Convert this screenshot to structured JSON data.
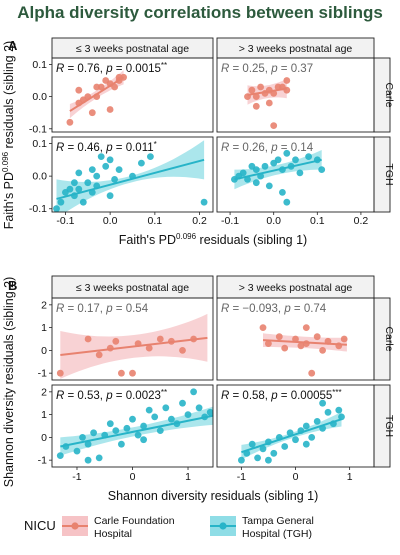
{
  "title": "Alpha diversity correlations between siblings",
  "colors": {
    "carle": "#e8826f",
    "carle_band": "#f6c3c6",
    "tgh": "#27b4c8",
    "tgh_band": "#8fdde6",
    "strip_bg": "#f2f2f2",
    "stat_sig": "#111111",
    "stat_ns": "#666666"
  },
  "legend": {
    "title": "NICU",
    "carle_line1": "Carle Foundation",
    "carle_line2": "Hospital",
    "tgh_line1": "Tampa General",
    "tgh_line2": "Hospital (TGH)"
  },
  "chart_data": [
    {
      "id": "A",
      "type": "scatter",
      "panel_letter": "A",
      "col_labels": [
        "≤ 3 weeks postnatal age",
        "> 3 weeks postnatal age"
      ],
      "row_labels": [
        "Carle",
        "TGH"
      ],
      "xlabel": {
        "pre": "Faith's PD",
        "sup": "0.096",
        "post": " residuals (sibling 1)"
      },
      "ylabel": {
        "pre": "Faith's PD",
        "sup": "0.096",
        "post": " residuals (sibling 2)"
      },
      "xlim": [
        -0.13,
        0.23
      ],
      "xticks": [
        -0.1,
        0.0,
        0.1,
        0.2
      ],
      "xtick_labels": [
        "-0.1",
        "0.0",
        "0.1",
        "0.2"
      ],
      "rows": [
        {
          "ylim": [
            -0.11,
            0.12
          ],
          "yticks": [
            -0.1,
            0.0,
            0.1
          ],
          "ytick_labels": [
            "-0.1",
            "0.0",
            "0.1"
          ]
        },
        {
          "ylim": [
            -0.11,
            0.12
          ],
          "yticks": [
            -0.1,
            0.0,
            0.1
          ],
          "ytick_labels": [
            "-0.1",
            "0.0",
            "0.1"
          ]
        }
      ],
      "panels": [
        {
          "row": 0,
          "col": 0,
          "group": "carle",
          "stat": {
            "r": "0.76",
            "p": "0.0015",
            "stars": "**"
          },
          "significant": true,
          "fit": {
            "x": [
              -0.09,
              0.03
            ],
            "y": [
              -0.045,
              0.06
            ]
          },
          "band": [
            0.012,
            0.022
          ],
          "points": [
            [
              -0.09,
              -0.08
            ],
            [
              -0.07,
              -0.02
            ],
            [
              -0.07,
              0.02
            ],
            [
              -0.06,
              -0.01
            ],
            [
              -0.05,
              0.0
            ],
            [
              -0.04,
              -0.05
            ],
            [
              -0.03,
              0.0
            ],
            [
              -0.03,
              0.03
            ],
            [
              -0.02,
              0.03
            ],
            [
              -0.01,
              0.05
            ],
            [
              0.0,
              -0.04
            ],
            [
              0.0,
              0.04
            ],
            [
              0.01,
              0.03
            ],
            [
              0.02,
              0.05
            ],
            [
              0.02,
              0.06
            ],
            [
              0.03,
              0.06
            ]
          ]
        },
        {
          "row": 0,
          "col": 1,
          "group": "carle",
          "stat": {
            "r": "0.25",
            "p": "0.37",
            "stars": ""
          },
          "significant": false,
          "fit": {
            "x": [
              -0.06,
              0.03
            ],
            "y": [
              0.005,
              0.025
            ]
          },
          "band": [
            0.02,
            0.03
          ],
          "points": [
            [
              -0.06,
              0.0
            ],
            [
              -0.05,
              0.02
            ],
            [
              -0.04,
              0.0
            ],
            [
              -0.03,
              0.03
            ],
            [
              -0.02,
              0.01
            ],
            [
              -0.01,
              -0.02
            ],
            [
              -0.01,
              0.02
            ],
            [
              0.0,
              0.01
            ],
            [
              0.0,
              -0.09
            ],
            [
              0.01,
              0.03
            ],
            [
              0.02,
              0.03
            ],
            [
              0.03,
              0.02
            ],
            [
              0.03,
              0.05
            ],
            [
              -0.04,
              -0.03
            ]
          ]
        },
        {
          "row": 1,
          "col": 0,
          "group": "tgh",
          "stat": {
            "r": "0.46",
            "p": "0.011",
            "stars": "*"
          },
          "significant": true,
          "fit": {
            "x": [
              -0.12,
              0.21
            ],
            "y": [
              -0.07,
              0.05
            ]
          },
          "band": [
            0.01,
            0.06
          ],
          "points": [
            [
              -0.12,
              -0.1
            ],
            [
              -0.11,
              -0.08
            ],
            [
              -0.1,
              -0.05
            ],
            [
              -0.09,
              -0.04
            ],
            [
              -0.08,
              -0.06
            ],
            [
              -0.08,
              -0.02
            ],
            [
              -0.07,
              -0.04
            ],
            [
              -0.07,
              0.01
            ],
            [
              -0.06,
              -0.08
            ],
            [
              -0.05,
              -0.02
            ],
            [
              -0.04,
              -0.05
            ],
            [
              -0.04,
              0.02
            ],
            [
              -0.03,
              0.0
            ],
            [
              -0.03,
              -0.03
            ],
            [
              -0.02,
              0.06
            ],
            [
              -0.01,
              0.03
            ],
            [
              0.0,
              -0.06
            ],
            [
              0.0,
              0.05
            ],
            [
              0.01,
              -0.01
            ],
            [
              0.02,
              0.02
            ],
            [
              0.05,
              0.0
            ],
            [
              0.07,
              0.04
            ],
            [
              0.09,
              0.06
            ],
            [
              0.21,
              -0.08
            ]
          ]
        },
        {
          "row": 1,
          "col": 1,
          "group": "tgh",
          "stat": {
            "r": "0.26",
            "p": "0.14",
            "stars": ""
          },
          "significant": false,
          "fit": {
            "x": [
              -0.09,
              0.11
            ],
            "y": [
              -0.01,
              0.05
            ]
          },
          "band": [
            0.015,
            0.03
          ],
          "points": [
            [
              -0.09,
              -0.01
            ],
            [
              -0.08,
              0.0
            ],
            [
              -0.07,
              0.01
            ],
            [
              -0.06,
              -0.01
            ],
            [
              -0.05,
              0.03
            ],
            [
              -0.04,
              -0.02
            ],
            [
              -0.04,
              0.02
            ],
            [
              -0.03,
              0.0
            ],
            [
              -0.02,
              0.03
            ],
            [
              -0.01,
              -0.03
            ],
            [
              0.0,
              0.04
            ],
            [
              0.01,
              0.05
            ],
            [
              0.02,
              -0.05
            ],
            [
              0.02,
              0.02
            ],
            [
              0.03,
              -0.08
            ],
            [
              0.04,
              0.03
            ],
            [
              0.05,
              0.05
            ],
            [
              0.06,
              0.01
            ],
            [
              0.08,
              0.06
            ],
            [
              0.1,
              0.05
            ],
            [
              0.11,
              0.02
            ],
            [
              0.03,
              0.07
            ]
          ]
        }
      ]
    },
    {
      "id": "B",
      "type": "scatter",
      "panel_letter": "B",
      "col_labels": [
        "≤ 3 weeks postnatal age",
        "> 3 weeks postnatal age"
      ],
      "row_labels": [
        "Carle",
        "TGH"
      ],
      "xlabel": {
        "pre": "Shannon diversity residuals (sibling 1)",
        "sup": "",
        "post": ""
      },
      "ylabel": {
        "pre": "Shannon diversity residuals (sibling 2)",
        "sup": "",
        "post": ""
      },
      "xlim": [
        -1.45,
        1.45
      ],
      "xticks": [
        -1,
        0,
        1
      ],
      "xtick_labels": [
        "-1",
        "0",
        "1"
      ],
      "rows": [
        {
          "ylim": [
            -1.3,
            2.3
          ],
          "yticks": [
            -1,
            0,
            1,
            2
          ],
          "ytick_labels": [
            "-1",
            "0",
            "1",
            "2"
          ]
        },
        {
          "ylim": [
            -1.3,
            2.3
          ],
          "yticks": [
            -1,
            0,
            1,
            2
          ],
          "ytick_labels": [
            "-1",
            "0",
            "1",
            "2"
          ]
        }
      ],
      "panels": [
        {
          "row": 0,
          "col": 0,
          "group": "carle",
          "stat": {
            "r": "0.17",
            "p": "0.54",
            "stars": ""
          },
          "significant": false,
          "fit": {
            "x": [
              -1.3,
              1.35
            ],
            "y": [
              -0.2,
              0.55
            ]
          },
          "band": [
            0.5,
            1.05
          ],
          "points": [
            [
              -1.3,
              -1.0
            ],
            [
              -0.8,
              0.5
            ],
            [
              -0.6,
              -0.2
            ],
            [
              -0.4,
              0.1
            ],
            [
              -0.2,
              -1.0
            ],
            [
              0.0,
              -1.0
            ],
            [
              0.1,
              0.3
            ],
            [
              0.3,
              0.1
            ],
            [
              0.5,
              0.5
            ],
            [
              0.7,
              0.4
            ],
            [
              0.9,
              0.0
            ],
            [
              -0.3,
              0.4
            ],
            [
              1.1,
              0.5
            ]
          ]
        },
        {
          "row": 0,
          "col": 1,
          "group": "carle",
          "stat": {
            "r": "−0.093",
            "p": "0.74",
            "stars": ""
          },
          "significant": false,
          "fit": {
            "x": [
              -0.6,
              0.95
            ],
            "y": [
              0.45,
              0.25
            ]
          },
          "band": [
            0.25,
            0.3
          ],
          "points": [
            [
              -0.6,
              1.0
            ],
            [
              -0.5,
              0.3
            ],
            [
              -0.3,
              0.6
            ],
            [
              -0.2,
              0.1
            ],
            [
              0.0,
              0.5
            ],
            [
              0.1,
              0.2
            ],
            [
              0.2,
              1.0
            ],
            [
              0.3,
              -1.0
            ],
            [
              0.4,
              0.6
            ],
            [
              0.5,
              0.0
            ],
            [
              0.6,
              0.4
            ],
            [
              0.8,
              0.2
            ],
            [
              0.9,
              0.5
            ],
            [
              0.2,
              0.3
            ]
          ]
        },
        {
          "row": 1,
          "col": 0,
          "group": "tgh",
          "stat": {
            "r": "0.53",
            "p": "0.0023",
            "stars": "**"
          },
          "significant": true,
          "fit": {
            "x": [
              -1.3,
              1.45
            ],
            "y": [
              -0.4,
              0.95
            ]
          },
          "band": [
            0.2,
            0.4
          ],
          "points": [
            [
              -1.3,
              -0.8
            ],
            [
              -1.2,
              -0.4
            ],
            [
              -1.0,
              -0.6
            ],
            [
              -0.9,
              0.0
            ],
            [
              -0.8,
              -0.3
            ],
            [
              -0.7,
              0.2
            ],
            [
              -0.6,
              -0.9
            ],
            [
              -0.5,
              0.1
            ],
            [
              -0.4,
              0.6
            ],
            [
              -0.3,
              0.3
            ],
            [
              -0.2,
              -0.3
            ],
            [
              -0.1,
              0.4
            ],
            [
              0.0,
              0.8
            ],
            [
              0.1,
              0.1
            ],
            [
              0.2,
              0.5
            ],
            [
              0.3,
              1.2
            ],
            [
              0.4,
              0.9
            ],
            [
              0.5,
              0.3
            ],
            [
              0.6,
              1.3
            ],
            [
              0.7,
              0.8
            ],
            [
              0.8,
              0.6
            ],
            [
              0.9,
              1.5
            ],
            [
              1.0,
              1.0
            ],
            [
              1.1,
              2.0
            ],
            [
              1.2,
              1.3
            ],
            [
              1.3,
              0.9
            ],
            [
              0.2,
              -0.1
            ],
            [
              -0.8,
              -1.0
            ],
            [
              1.4,
              1.1
            ]
          ]
        },
        {
          "row": 1,
          "col": 1,
          "group": "tgh",
          "stat": {
            "r": "0.58",
            "p": "0.00055",
            "stars": "***"
          },
          "significant": true,
          "fit": {
            "x": [
              -1.0,
              0.85
            ],
            "y": [
              -0.65,
              0.8
            ]
          },
          "band": [
            0.12,
            0.32
          ],
          "points": [
            [
              -1.0,
              -1.0
            ],
            [
              -0.9,
              -0.7
            ],
            [
              -0.8,
              -0.3
            ],
            [
              -0.7,
              -0.9
            ],
            [
              -0.6,
              -0.5
            ],
            [
              -0.5,
              -0.2
            ],
            [
              -0.4,
              -0.7
            ],
            [
              -0.3,
              0.0
            ],
            [
              -0.2,
              -0.4
            ],
            [
              -0.1,
              0.2
            ],
            [
              0.0,
              -0.1
            ],
            [
              0.1,
              0.3
            ],
            [
              0.2,
              0.5
            ],
            [
              0.3,
              0.0
            ],
            [
              0.4,
              0.7
            ],
            [
              0.5,
              0.4
            ],
            [
              0.6,
              1.1
            ],
            [
              0.7,
              0.6
            ],
            [
              0.8,
              1.2
            ],
            [
              0.85,
              0.9
            ],
            [
              -0.5,
              -1.0
            ],
            [
              0.2,
              -0.3
            ],
            [
              0.5,
              1.5
            ]
          ]
        }
      ]
    }
  ]
}
